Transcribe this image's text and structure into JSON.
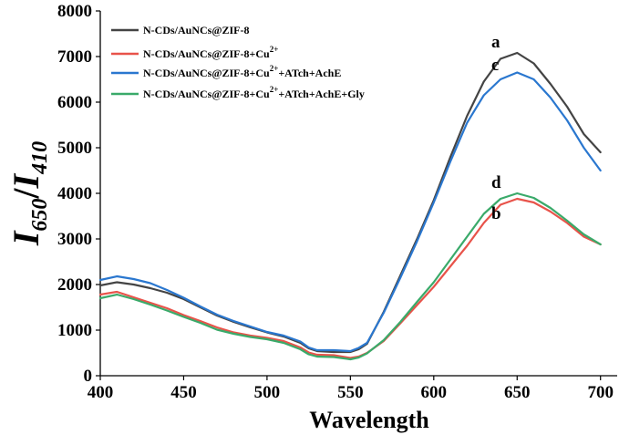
{
  "chart_data": {
    "type": "line",
    "xlabel": "Wavelength",
    "ylabel": {
      "main": "I",
      "sub1": "650",
      "sep": "/",
      "main2": "I",
      "sub2": "410"
    },
    "xlim": [
      400,
      710
    ],
    "ylim": [
      0,
      8000
    ],
    "xticks": [
      400,
      450,
      500,
      550,
      600,
      650,
      700
    ],
    "yticks": [
      0,
      1000,
      2000,
      3000,
      4000,
      5000,
      6000,
      7000,
      8000
    ],
    "legend_position": "top-left",
    "series": [
      {
        "name": "N-CDs/AuNCs@ZIF-8",
        "legend": {
          "main": "N-CDs/AuNCs@ZIF-8",
          "sup": "",
          "tail": ""
        },
        "letter": "a",
        "color": "#444444",
        "x": [
          400,
          410,
          420,
          430,
          440,
          450,
          460,
          470,
          480,
          490,
          500,
          510,
          520,
          525,
          530,
          540,
          550,
          555,
          560,
          570,
          580,
          590,
          600,
          610,
          620,
          630,
          640,
          650,
          660,
          670,
          680,
          690,
          700
        ],
        "y": [
          1980,
          2050,
          2000,
          1920,
          1820,
          1680,
          1500,
          1320,
          1180,
          1060,
          950,
          860,
          720,
          600,
          540,
          520,
          520,
          580,
          700,
          1400,
          2200,
          3000,
          3850,
          4800,
          5700,
          6450,
          6950,
          7080,
          6850,
          6400,
          5900,
          5300,
          4900
        ]
      },
      {
        "name": "N-CDs/AuNCs@ZIF-8+Cu2+",
        "legend": {
          "main": "N-CDs/AuNCs@ZIF-8+Cu",
          "sup": "2+",
          "tail": ""
        },
        "letter": "b",
        "color": "#e8534a",
        "x": [
          400,
          410,
          420,
          430,
          440,
          450,
          460,
          470,
          480,
          490,
          500,
          510,
          520,
          525,
          530,
          540,
          550,
          555,
          560,
          570,
          580,
          590,
          600,
          610,
          620,
          630,
          640,
          650,
          660,
          670,
          680,
          690,
          700
        ],
        "y": [
          1780,
          1840,
          1720,
          1600,
          1480,
          1330,
          1200,
          1060,
          950,
          880,
          830,
          760,
          620,
          510,
          460,
          450,
          390,
          420,
          500,
          760,
          1150,
          1550,
          1950,
          2400,
          2850,
          3350,
          3750,
          3880,
          3800,
          3600,
          3350,
          3050,
          2880
        ]
      },
      {
        "name": "N-CDs/AuNCs@ZIF-8+Cu2++ATch+AchE",
        "legend": {
          "main": "N-CDs/AuNCs@ZIF-8+Cu",
          "sup": "2+",
          "tail": "+ATch+AchE"
        },
        "letter": "c",
        "color": "#2a77cf",
        "x": [
          400,
          410,
          420,
          430,
          440,
          450,
          460,
          470,
          480,
          490,
          500,
          510,
          520,
          525,
          530,
          540,
          550,
          555,
          560,
          570,
          580,
          590,
          600,
          610,
          620,
          630,
          640,
          650,
          660,
          670,
          680,
          690,
          700
        ],
        "y": [
          2100,
          2180,
          2120,
          2030,
          1880,
          1710,
          1520,
          1340,
          1200,
          1080,
          960,
          880,
          750,
          620,
          560,
          560,
          540,
          610,
          720,
          1380,
          2150,
          2950,
          3800,
          4700,
          5550,
          6150,
          6500,
          6650,
          6500,
          6100,
          5600,
          5000,
          4500
        ]
      },
      {
        "name": "N-CDs/AuNCs@ZIF-8+Cu2++ATch+AchE+Gly",
        "legend": {
          "main": "N-CDs/AuNCs@ZIF-8+Cu",
          "sup": "2+",
          "tail": "+ATch+AchE+Gly"
        },
        "letter": "d",
        "color": "#3aaa6a",
        "x": [
          400,
          410,
          420,
          430,
          440,
          450,
          460,
          470,
          480,
          490,
          500,
          510,
          520,
          525,
          530,
          540,
          550,
          555,
          560,
          570,
          580,
          590,
          600,
          610,
          620,
          630,
          640,
          650,
          660,
          670,
          680,
          690,
          700
        ],
        "y": [
          1700,
          1780,
          1680,
          1560,
          1430,
          1290,
          1160,
          1010,
          920,
          850,
          800,
          720,
          580,
          470,
          420,
          410,
          360,
          400,
          490,
          780,
          1180,
          1620,
          2050,
          2550,
          3050,
          3550,
          3880,
          4000,
          3900,
          3680,
          3400,
          3100,
          2880
        ]
      }
    ]
  }
}
